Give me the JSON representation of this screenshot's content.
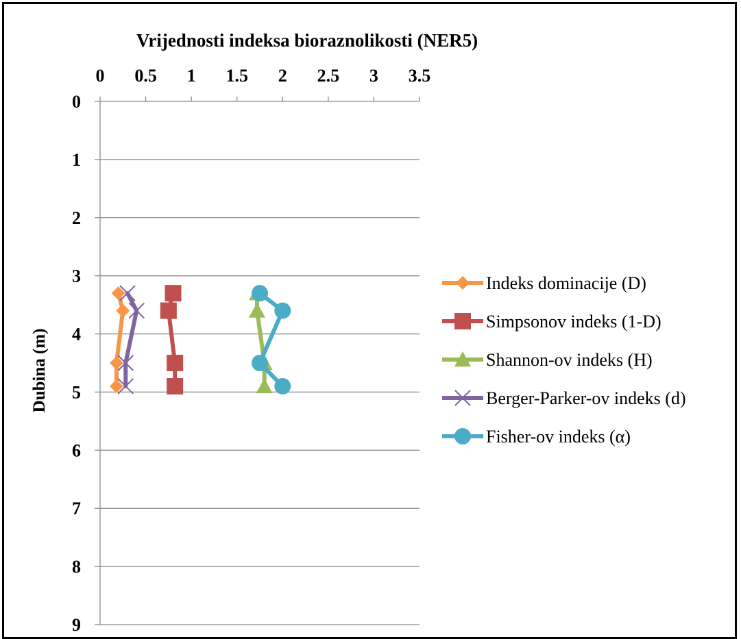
{
  "chart_data": {
    "type": "line",
    "title": "Vrijednosti indeksa bioraznolikosti (NER5)",
    "xlabel": "",
    "ylabel": "Dubina (m)",
    "xlim": [
      0,
      3.5
    ],
    "ylim": [
      0,
      9
    ],
    "y_inverted": true,
    "x_axis_position": "top",
    "x_ticks": [
      "0",
      "0.5",
      "1",
      "1.5",
      "2",
      "2.5",
      "3",
      "3.5"
    ],
    "y_ticks": [
      "0",
      "1",
      "2",
      "3",
      "4",
      "5",
      "6",
      "7",
      "8",
      "9"
    ],
    "grid": "horizontal",
    "legend_position": "right",
    "series": [
      {
        "name": "Indeks dominacije (D)",
        "color": "#f79646",
        "marker": "diamond",
        "points": [
          [
            0.2,
            3.3
          ],
          [
            0.25,
            3.6
          ],
          [
            0.18,
            4.5
          ],
          [
            0.18,
            4.9
          ]
        ]
      },
      {
        "name": "Simpsonov indeks (1-D)",
        "color": "#c0504d",
        "marker": "square",
        "points": [
          [
            0.8,
            3.3
          ],
          [
            0.75,
            3.6
          ],
          [
            0.82,
            4.5
          ],
          [
            0.82,
            4.9
          ]
        ]
      },
      {
        "name": "Shannon-ov indeks (H)",
        "color": "#9bbb59",
        "marker": "triangle",
        "points": [
          [
            1.72,
            3.3
          ],
          [
            1.72,
            3.6
          ],
          [
            1.8,
            4.5
          ],
          [
            1.8,
            4.9
          ]
        ]
      },
      {
        "name": "Berger-Parker-ov indeks (d)",
        "color": "#8064a2",
        "marker": "x",
        "points": [
          [
            0.3,
            3.3
          ],
          [
            0.4,
            3.6
          ],
          [
            0.28,
            4.5
          ],
          [
            0.28,
            4.9
          ]
        ]
      },
      {
        "name": "Fisher-ov indeks (α)",
        "color": "#4bacc6",
        "marker": "circle",
        "points": [
          [
            1.75,
            3.3
          ],
          [
            2.0,
            3.6
          ],
          [
            1.75,
            4.5
          ],
          [
            2.0,
            4.9
          ]
        ]
      }
    ]
  }
}
